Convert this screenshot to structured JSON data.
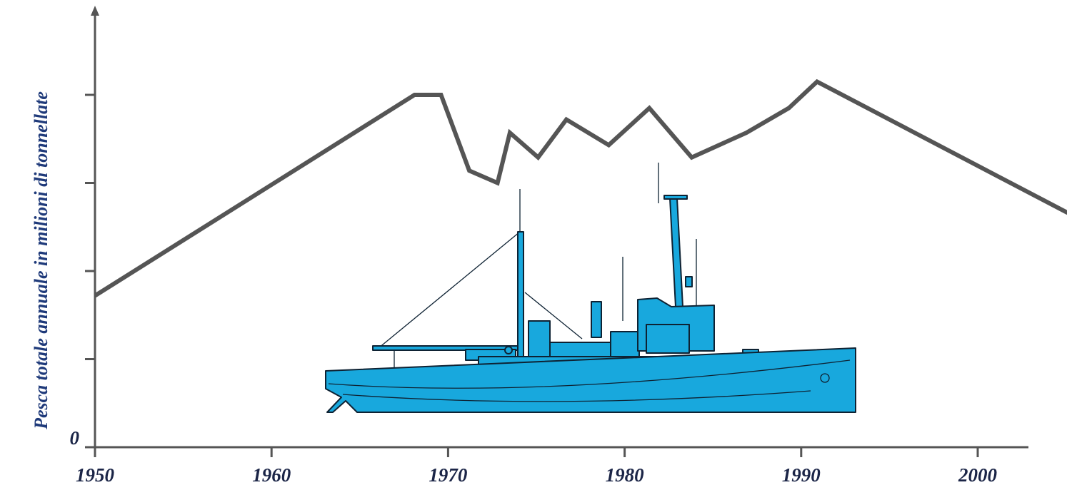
{
  "chart_data": {
    "type": "line",
    "ylabel": "Pesca totale annuale in milioni di tonnellate",
    "x": [
      1950,
      1968.1,
      1969.6,
      1971.2,
      1972.8,
      1973.5,
      1975.1,
      1976.7,
      1979.1,
      1981.4,
      1983.8,
      1986.9,
      1989.3,
      1990.9,
      2005.1
    ],
    "series": [
      {
        "color": "#555555",
        "values": [
          1.72,
          4.0,
          4.0,
          3.14,
          3.0,
          3.57,
          3.29,
          3.72,
          3.43,
          3.85,
          3.29,
          3.57,
          3.85,
          4.15,
          2.66
        ]
      }
    ],
    "xlim": [
      1950,
      2005
    ],
    "xticks": [
      1950,
      1960,
      1970,
      1980,
      1990,
      2000
    ],
    "ylim": [
      0,
      5
    ],
    "yticks": [
      0
    ],
    "yminor_ticks": [
      1,
      2,
      3,
      4
    ]
  }
}
